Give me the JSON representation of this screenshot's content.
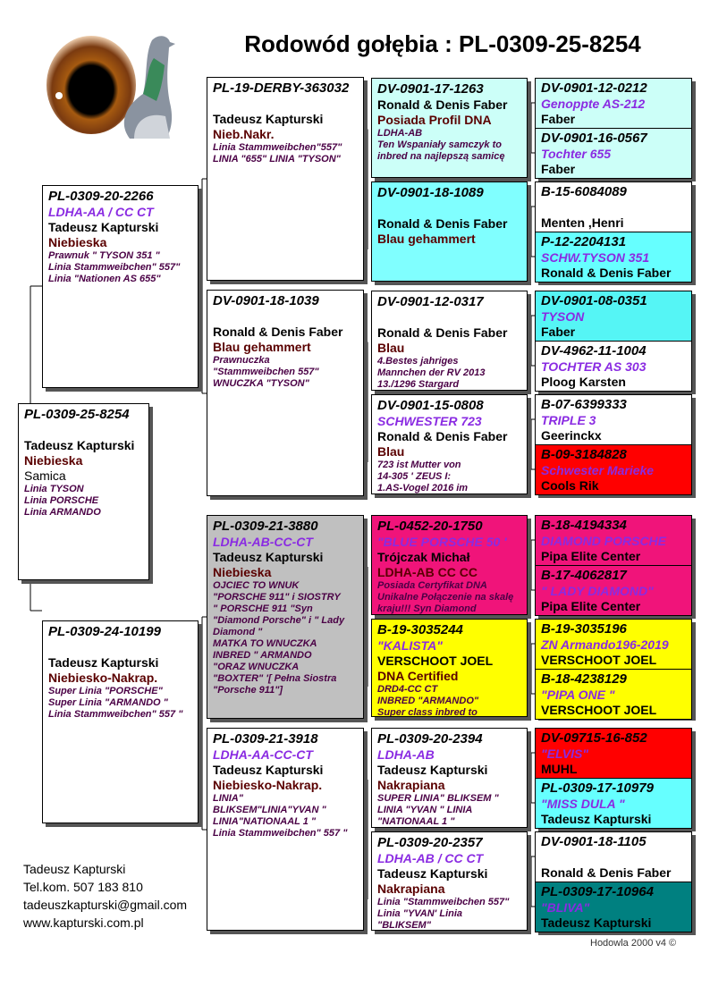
{
  "title": "Rodowód gołębia : PL-0309-25-8254",
  "logo": {
    "icon": "eye-and-pigeon-logo"
  },
  "contact": [
    "Tadeusz Kapturski",
    "Tel.kom. 507 183 810",
    "tadeuszkapturski@gmail.com",
    "www.kapturski.com.pl"
  ],
  "footer": "Hodowla 2000 v4 ©",
  "colors": {
    "white": "#ffffff",
    "light_cyan": "#ccfff8",
    "cyan": "#77ffff",
    "magenta": "#f0147a",
    "yellow": "#ffff00",
    "red": "#ff0000",
    "gray": "#c0c0c0",
    "teal": "#008080"
  },
  "pedigree": [
    {
      "key": "subject",
      "ring": "PL-0309-25-8254",
      "name": "",
      "owner": "Tadeusz Kapturski",
      "color": "Niebieska",
      "sex": "Samica",
      "notes": [
        "Linia TYSON",
        "Linia PORSCHE",
        "Linia ARMANDO"
      ],
      "bg": "#ffffff"
    },
    {
      "key": "s",
      "ring": "PL-0309-20-2266",
      "name": "LDHA-AA / CC CT",
      "owner": "Tadeusz Kapturski",
      "color": "Niebieska",
      "notes": [
        "Prawnuk \" TYSON 351 \"",
        "Linia Stammweibchen\" 557\"",
        "Linia \"Nationen AS 655\""
      ],
      "bg": "#ffffff"
    },
    {
      "key": "d",
      "ring": "PL-0309-24-10199",
      "name": "",
      "owner": "Tadeusz Kapturski",
      "color": "Niebiesko-Nakrap.",
      "notes": [
        "Super Linia \"PORSCHE\"",
        "Super Linia \"ARMANDO \"",
        "Linia Stammweibchen\" 557 \""
      ],
      "bg": "#ffffff"
    },
    {
      "key": "ss",
      "ring": "PL-19-DERBY-363032",
      "name": "",
      "owner": "Tadeusz Kapturski",
      "color": "Nieb.Nakr.",
      "notes": [
        " Linia Stammweibchen\"557\"",
        "LINIA \"655\" LINIA \"TYSON\""
      ],
      "bg": "#ffffff"
    },
    {
      "key": "sd",
      "ring": "DV-0901-18-1039",
      "name": "",
      "owner": "Ronald & Denis Faber",
      "color": "Blau gehammert",
      "notes": [
        "Prawnuczka",
        "\"Stammweibchen 557\"",
        "WNUCZKA \"TYSON\""
      ],
      "bg": "#ffffff"
    },
    {
      "key": "ds",
      "ring": "PL-0309-21-3880",
      "name": "LDHA-AB-CC-CT",
      "owner": "Tadeusz Kapturski",
      "color": "Niebieska",
      "notes": [
        "OJCIEC TO WNUK",
        "\"PORSCHE 911\" i SIOSTRY",
        "\" PORSCHE 911 \"Syn",
        "\"Diamond Porsche\"  i \" Lady",
        "Diamond \"",
        "MATKA TO WNUCZKA",
        "INBRED \" ARMANDO",
        "\"ORAZ WNUCZKA",
        "\"BOXTER\" '[ Pełna Siostra",
        "\"Porsche 911\"]"
      ],
      "bg": "#c0c0c0"
    },
    {
      "key": "dd",
      "ring": "PL-0309-21-3918",
      "name": "LDHA-AA-CC-CT",
      "owner": "Tadeusz Kapturski",
      "color": "Niebiesko-Nakrap.",
      "notes": [
        " LINIA\"",
        "BLIKSEM\"LINIA\"YVAN \"",
        "LINIA\"NATIONAAL 1 \"",
        "Linia Stammweibchen\" 557 \""
      ],
      "bg": "#ffffff"
    },
    {
      "key": "sss",
      "ring": "DV-0901-17-1263",
      "name": "",
      "owner": "Ronald & Denis Faber",
      "color": "Posiada Profil DNA",
      "notes": [
        "LDHA-AB",
        "Ten Wspaniały samczyk to",
        "inbred na najlepszą samicę"
      ],
      "bg": "#ccfff8",
      "noblank": true
    },
    {
      "key": "ssd",
      "ring": "DV-0901-18-1089",
      "name": "",
      "owner": "Ronald & Denis Faber",
      "color": "Blau gehammert",
      "notes": [],
      "bg": "#80ffff"
    },
    {
      "key": "sds",
      "ring": "DV-0901-12-0317",
      "name": "",
      "owner": "Ronald & Denis Faber",
      "color": "Blau",
      "notes": [
        "4.Bestes jahriges",
        "Mannchen der RV 2013",
        "13./1296 Stargard"
      ],
      "bg": "#ffffff"
    },
    {
      "key": "sdd",
      "ring": "DV-0901-15-0808",
      "name": "SCHWESTER 723",
      "owner": "Ronald & Denis Faber",
      "color": "Blau",
      "notes": [
        "723 ist Mutter von",
        "14-305 ' ZEUS I:",
        "1.AS-Vogel 2016 im"
      ],
      "bg": "#ffffff"
    },
    {
      "key": "dss",
      "ring": "PL-0452-20-1750",
      "name": "\"BLUE PORSCHE 50 '",
      "owner": "Trójczak Michał",
      "color": "LDHA-AB CC CC",
      "notes": [
        "Posiada Certyfikat DNA",
        "Unikalne Połączenie na skalę",
        "kraju!!! Syn Diamond"
      ],
      "bg": "#f0147a"
    },
    {
      "key": "dsd",
      "ring": "B-19-3035244",
      "name": "\"KALISTA\"",
      "owner": "VERSCHOOT JOEL",
      "color": " DNA Certified",
      "notes": [
        "DRD4-CC CT",
        "INBRED \"ARMANDO\"",
        "Super class inbred to"
      ],
      "bg": "#ffff00"
    },
    {
      "key": "dds",
      "ring": "PL-0309-20-2394",
      "name": "LDHA-AB",
      "owner": "Tadeusz Kapturski",
      "color": "Nakrapiana",
      "notes": [
        "SUPER LINIA\" BLIKSEM \"",
        "LINIA \"YVAN \" LINIA",
        "\"NATIONAAL 1 \""
      ],
      "bg": "#ffffff"
    },
    {
      "key": "ddd",
      "ring": "PL-0309-20-2357",
      "name": "LDHA-AB / CC CT",
      "owner": "Tadeusz Kapturski",
      "color": "Nakrapiana",
      "notes": [
        "Linia \"Stammweibchen 557\"",
        "Linia \"YVAN'  Linia",
        "\"BLIKSEM\""
      ],
      "bg": "#ffffff"
    },
    {
      "key": "g1",
      "ring": "DV-0901-12-0212",
      "name": "Genoppte AS-212",
      "owner": "Faber",
      "bg": "#ccfff8"
    },
    {
      "key": "g2",
      "ring": "DV-0901-16-0567",
      "name": "Tochter 655",
      "owner": "Faber",
      "bg": "#ccfff8"
    },
    {
      "key": "g3",
      "ring": "B-15-6084089",
      "name": "",
      "owner": "Menten ,Henri",
      "bg": "#ffffff"
    },
    {
      "key": "g4",
      "ring": "P-12-2204131",
      "name": "SCHW.TYSON 351",
      "owner": "Ronald & Denis Faber",
      "bg": "#66ffff"
    },
    {
      "key": "g5",
      "ring": "DV-0901-08-0351",
      "name": "TYSON",
      "owner": "Faber",
      "bg": "#55f5f5"
    },
    {
      "key": "g6",
      "ring": "DV-4962-11-1004",
      "name": "TOCHTER AS 303",
      "owner": "Ploog Karsten",
      "bg": "#ffffff"
    },
    {
      "key": "g7",
      "ring": "B-07-6399333",
      "name": "TRIPLE 3",
      "owner": "Geerinckx",
      "bg": "#ffffff"
    },
    {
      "key": "g8",
      "ring": "B-09-3184828",
      "name": "Schwester Marieke",
      "owner": "Cools Rik",
      "bg": "#ff0000"
    },
    {
      "key": "g9",
      "ring": "B-18-4194334",
      "name": "DIAMOND PORSCHE",
      "owner": "Pipa Elite Center",
      "bg": "#f0147a"
    },
    {
      "key": "g10",
      "ring": "B-17-4062817",
      "name": "\" LADY DIAMOND\"",
      "owner": "Pipa Elite Center",
      "bg": "#f0147a"
    },
    {
      "key": "g11",
      "ring": "B-19-3035196",
      "name": "ZN Armando196-2019",
      "owner": "VERSCHOOT JOEL",
      "bg": "#ffff00"
    },
    {
      "key": "g12",
      "ring": "B-18-4238129",
      "name": "   \"PIPA ONE \"",
      "owner": "VERSCHOOT JOEL",
      "bg": "#ffff00"
    },
    {
      "key": "g13",
      "ring": "DV-09715-16-852",
      "name": "      \"ELVIS\"",
      "owner": "MUHL",
      "bg": "#ff0000"
    },
    {
      "key": "g14",
      "ring": "PL-0309-17-10979",
      "name": "\"MISS DULA \"",
      "owner": "Tadeusz Kapturski",
      "bg": "#66ffff"
    },
    {
      "key": "g15",
      "ring": "DV-0901-18-1105",
      "name": "",
      "owner": "Ronald & Denis Faber",
      "bg": "#ffffff"
    },
    {
      "key": "g16",
      "ring": "PL-0309-17-10964",
      "name": "\"BLIVA\"",
      "owner": "Tadeusz Kapturski",
      "bg": "#008080"
    }
  ]
}
